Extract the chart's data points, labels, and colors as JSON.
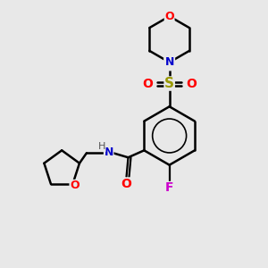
{
  "background_color": "#e8e8e8",
  "atom_colors": {
    "C": "#000000",
    "N": "#0000cc",
    "O": "#ff0000",
    "F": "#cc00cc",
    "S": "#999900",
    "H": "#555555"
  },
  "bond_color": "#000000",
  "bond_lw": 1.6,
  "figsize": [
    3.0,
    3.0
  ],
  "dpi": 100
}
